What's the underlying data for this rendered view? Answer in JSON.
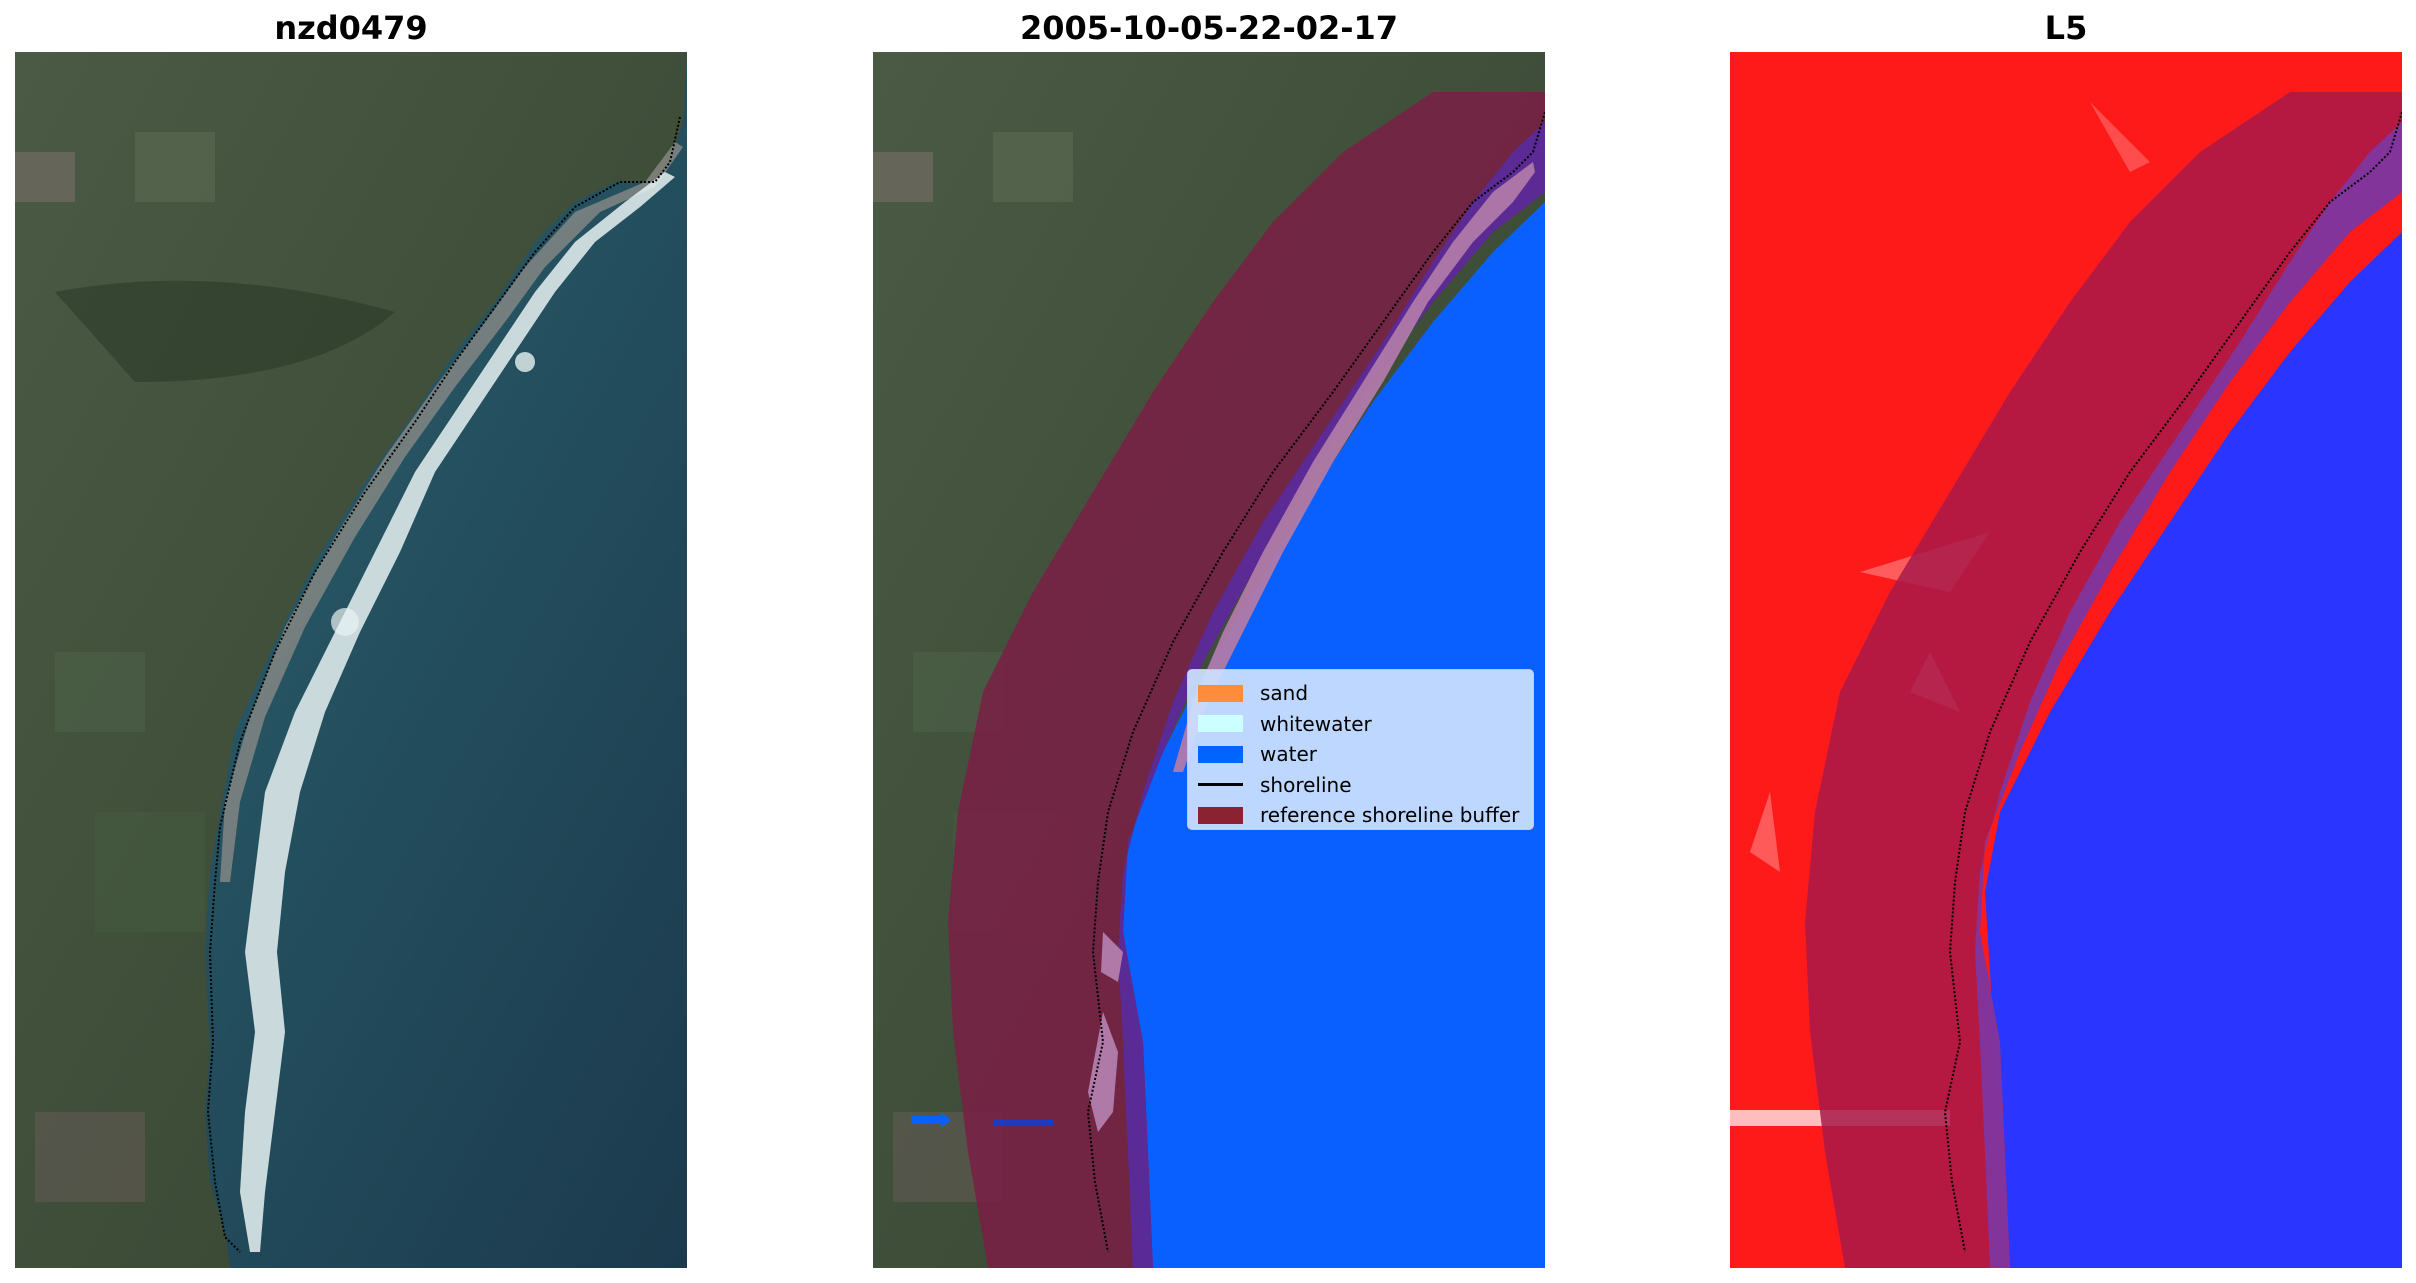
{
  "panels": {
    "left": {
      "title": "nzd0479"
    },
    "middle": {
      "title": "2005-10-05-22-02-17"
    },
    "right": {
      "title": "L5"
    }
  },
  "legend": {
    "items": [
      {
        "label": "sand",
        "color": "#ff8c3a",
        "kind": "patch"
      },
      {
        "label": "whitewater",
        "color": "#ccffff",
        "kind": "patch"
      },
      {
        "label": "water",
        "color": "#0064ff",
        "kind": "patch"
      },
      {
        "label": "shoreline",
        "color": "#000000",
        "kind": "line"
      },
      {
        "label": "reference shoreline buffer",
        "color": "#8b2232",
        "kind": "patch"
      }
    ]
  },
  "colors": {
    "land": "#3a4a36",
    "sea": "#21455a",
    "water_class": "#0a60ff",
    "buffer": "#7a1f45",
    "index_land": "#ff1a1a",
    "index_water": "#2a35ff"
  }
}
